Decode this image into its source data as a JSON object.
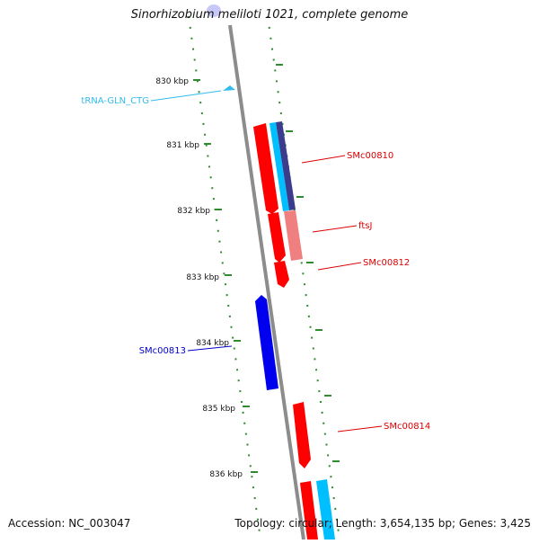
{
  "title": "Sinorhizobium meliloti 1021, complete genome",
  "footer": {
    "accession": "Accession: NC_003047",
    "summary": "Topology: circular; Length: 3,654,135 bp; Genes: 3,425"
  },
  "colors": {
    "backbone": "#8c8c8c",
    "ticks": "#2e8b2e",
    "gene_red": "#ff0000",
    "gene_blue": "#0000ee",
    "gene_cyan": "#00bfff",
    "gene_purple": "#3c3c8c",
    "gene_pink": "#f08080",
    "trna": "#33bbee"
  },
  "axis": {
    "unit": "kbp",
    "ticks": [
      {
        "value": 830,
        "label": "830 kbp"
      },
      {
        "value": 831,
        "label": "831 kbp"
      },
      {
        "value": 832,
        "label": "832 kbp"
      },
      {
        "value": 833,
        "label": "833 kbp"
      },
      {
        "value": 834,
        "label": "834 kbp"
      },
      {
        "value": 835,
        "label": "835 kbp"
      },
      {
        "value": 836,
        "label": "836 kbp"
      }
    ]
  },
  "labels": [
    {
      "text": "tRNA-GLN_CTG",
      "color": "#33bbee"
    },
    {
      "text": "SMc00810",
      "color": "#dd0000"
    },
    {
      "text": "ftsJ",
      "color": "#dd0000"
    },
    {
      "text": "SMc00812",
      "color": "#dd0000"
    },
    {
      "text": "SMc00813",
      "color": "#0000cc"
    },
    {
      "text": "SMc00814",
      "color": "#dd0000"
    }
  ]
}
